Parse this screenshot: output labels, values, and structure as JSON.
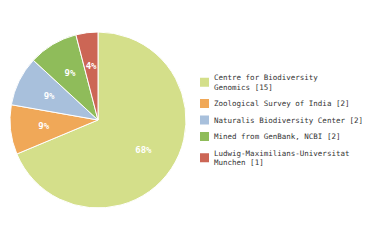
{
  "chart_data": {
    "type": "pie",
    "categories": [
      "Centre for Biodiversity\nGenomics [15]",
      "Zoological Survey of India [2]",
      "Naturalis Biodiversity Center [2]",
      "Mined from GenBank, NCBI [2]",
      "Ludwig-Maximilians-Universitat\nMunchen [1]"
    ],
    "values": [
      68,
      9,
      9,
      9,
      4
    ],
    "value_labels": [
      "68%",
      "9%",
      "9%",
      "9%",
      "4%"
    ],
    "colors": [
      "#d4df8a",
      "#f0a858",
      "#a8c0dc",
      "#8fbc5a",
      "#cc6655"
    ],
    "data_labels": true,
    "legend": "right"
  }
}
